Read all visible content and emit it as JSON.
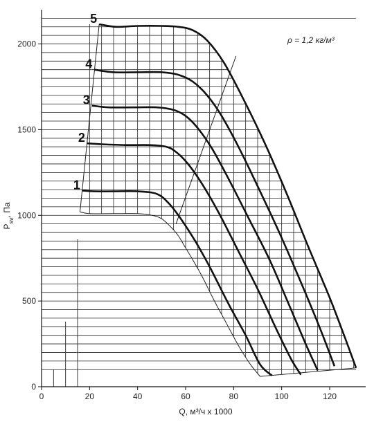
{
  "chart_data": {
    "type": "line",
    "xlabel": "Q, м³/ч x 1000",
    "ylabel": "Psv, Па",
    "xlim": [
      0,
      135
    ],
    "ylim": [
      0,
      2200
    ],
    "x_ticks": [
      0,
      20,
      40,
      60,
      80,
      100,
      120
    ],
    "y_ticks": [
      0,
      500,
      1000,
      1500,
      2000
    ],
    "grid": true,
    "annotation": "ρ = 1,2 кг/м³",
    "series": [
      {
        "name": "1",
        "x": [
          17,
          22,
          30,
          40,
          48,
          53,
          58,
          64,
          70,
          78,
          85,
          91,
          96
        ],
        "y": [
          1145,
          1140,
          1140,
          1140,
          1125,
          1070,
          980,
          850,
          700,
          480,
          300,
          130,
          65
        ]
      },
      {
        "name": "2",
        "x": [
          19,
          25,
          35,
          45,
          52,
          56,
          61,
          67,
          74,
          82,
          90,
          98,
          104,
          108
        ],
        "y": [
          1420,
          1415,
          1410,
          1410,
          1400,
          1370,
          1300,
          1180,
          1010,
          790,
          570,
          330,
          160,
          70
        ]
      },
      {
        "name": "3",
        "x": [
          21,
          28,
          38,
          48,
          55,
          60,
          65,
          71,
          78,
          86,
          95,
          103,
          110,
          115
        ],
        "y": [
          1640,
          1630,
          1630,
          1630,
          1615,
          1580,
          1510,
          1390,
          1210,
          990,
          740,
          480,
          250,
          95
        ]
      },
      {
        "name": "4",
        "x": [
          22,
          30,
          40,
          50,
          57,
          63,
          69,
          75,
          82,
          90,
          99,
          108,
          116,
          122
        ],
        "y": [
          1850,
          1835,
          1835,
          1835,
          1820,
          1780,
          1700,
          1580,
          1400,
          1170,
          900,
          610,
          340,
          120
        ]
      },
      {
        "name": "5",
        "x": [
          24,
          31,
          40,
          50,
          57,
          63,
          69,
          76,
          84,
          93,
          102,
          111,
          120,
          126,
          131
        ],
        "y": [
          2115,
          2100,
          2105,
          2105,
          2100,
          2080,
          2020,
          1890,
          1680,
          1420,
          1130,
          820,
          520,
          300,
          110
        ]
      }
    ],
    "min_curve": {
      "x": [
        16,
        20,
        30,
        40,
        46,
        50,
        54,
        57,
        60,
        63,
        67,
        72,
        77,
        82,
        87,
        91
      ],
      "y": [
        1020,
        1010,
        1010,
        1010,
        1000,
        980,
        930,
        880,
        810,
        740,
        640,
        500,
        370,
        240,
        130,
        60
      ]
    },
    "boundaries": {
      "left_edge": {
        "x": [
          24,
          16
        ],
        "y": [
          2115,
          1020
        ]
      },
      "diagonal": {
        "x": [
          56,
          81
        ],
        "y": [
          950,
          1930
        ]
      },
      "bottom_edge": {
        "x": [
          91,
          131
        ],
        "y": [
          60,
          110
        ]
      }
    },
    "stub_lines": [
      {
        "x": 5,
        "y_top": 100
      },
      {
        "x": 10,
        "y_top": 380
      },
      {
        "x": 15,
        "y_top": 860
      }
    ]
  }
}
